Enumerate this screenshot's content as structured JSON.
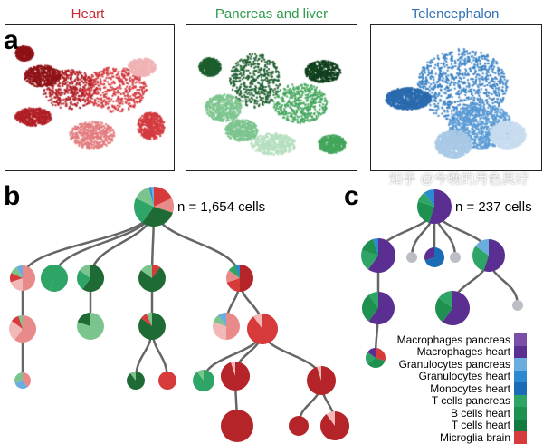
{
  "panel_a": {
    "label": "a",
    "plots": [
      {
        "title": "Heart",
        "color": "#c8282e",
        "shades": [
          "#b01e24",
          "#d33a3f",
          "#8e1216",
          "#e37a7d",
          "#f0b3b5"
        ]
      },
      {
        "title": "Pancreas and liver",
        "color": "#2a9a4a",
        "shades": [
          "#1d5e2e",
          "#43a65c",
          "#7cc48e",
          "#0f3f1c",
          "#b5dfbf"
        ]
      },
      {
        "title": "Telencephalon",
        "color": "#2f6fb3",
        "shades": [
          "#3b82c4",
          "#5b9bd5",
          "#2a6aae",
          "#a9c9e6",
          "#c8dcef"
        ]
      }
    ]
  },
  "panel_b": {
    "label": "b",
    "count_text": "n = 1,654 cells"
  },
  "panel_c": {
    "label": "c",
    "count_text": "n = 237 cells"
  },
  "legend": [
    {
      "label": "Macrophages pancreas",
      "color": "#7b4fa8"
    },
    {
      "label": "Macrophages heart",
      "color": "#5a2f91"
    },
    {
      "label": "Granulocytes pancreas",
      "color": "#6aaee0"
    },
    {
      "label": "Granulocytes heart",
      "color": "#2b8ad0"
    },
    {
      "label": "Monocytes heart",
      "color": "#1a6cb4"
    },
    {
      "label": "T cells pancreas",
      "color": "#2ea566"
    },
    {
      "label": "B cells heart",
      "color": "#1e9050"
    },
    {
      "label": "T cells heart",
      "color": "#117a3e"
    },
    {
      "label": "Microglia brain",
      "color": "#d63a3a"
    }
  ],
  "watermark": "知乎 @今晚的月色真好"
}
